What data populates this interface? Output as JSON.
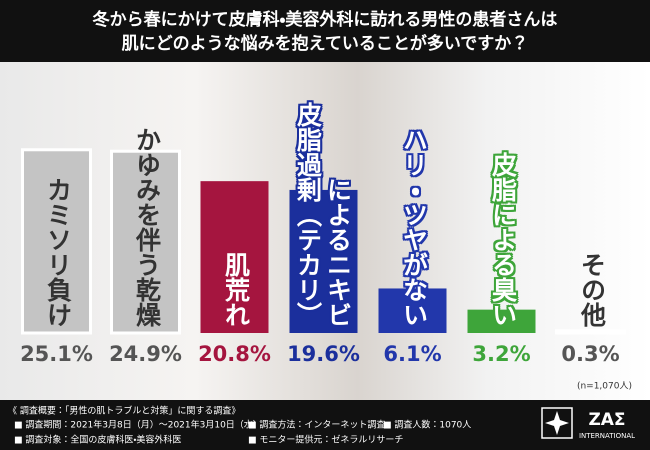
{
  "chart_data": {
    "type": "bar",
    "title": [
      "冬から春にかけて皮膚科・美容外科に訪れる男性の患者さんは",
      "肌にどのような悩みを抱えていることが多いですか？"
    ],
    "categories": [
      "カミソリ負け",
      "かゆみを伴う乾燥",
      "肌荒れ",
      "皮脂過剰（テカリ）によるニキビ",
      "ハリ・ツヤがない",
      "皮脂による臭い",
      "その他"
    ],
    "values": [
      25.1,
      24.9,
      20.8,
      19.6,
      6.1,
      3.2,
      0.3
    ],
    "value_labels": [
      "25.1%",
      "24.9%",
      "20.8%",
      "19.6%",
      "6.1%",
      "3.2%",
      "0.3%"
    ],
    "colors": [
      "#c4c4c4",
      "#c4c4c4",
      "#a5153f",
      "#1b2f9c",
      "#2237ab",
      "#3ea53a",
      "#c4c4c4"
    ],
    "note": "(n=1,070人)"
  },
  "footer": {
    "heading": "《 調査概要：「男性の肌トラブルと対策」に関する調査》",
    "items": [
      "■ 調査期間：2021年3月8日（月）～2021年3月10日（水）",
      "■ 調査方法：インターネット調査",
      "■ 調査人数：1070人",
      "■ 調査対象：全国の皮膚科医・美容外科医",
      "■ モニター提供元：ゼネラルリサーチ"
    ],
    "logo": "ZAΣ",
    "logo_sub": "INTERNATIONAL"
  }
}
